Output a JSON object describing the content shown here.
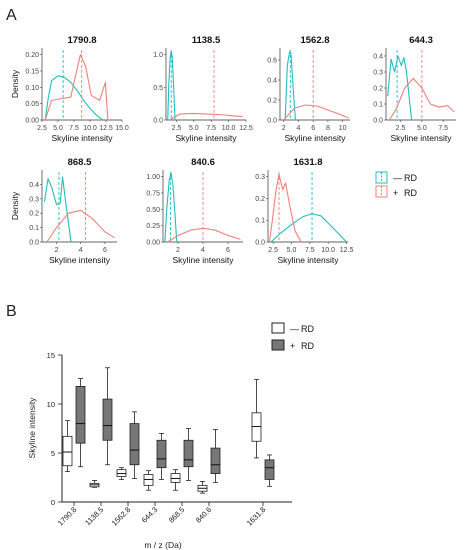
{
  "panels": {
    "a_label": "A",
    "b_label": "B"
  },
  "colors": {
    "minus": "#1fbfbf",
    "plus": "#f07f78",
    "box_plus": "#777777",
    "box_minus": "#ffffff"
  },
  "legend_a": {
    "minus": {
      "sign": "—",
      "text": "RD"
    },
    "plus": {
      "sign": "+",
      "text": "RD"
    }
  },
  "legend_b": {
    "minus": {
      "sign": "—",
      "text": "RD"
    },
    "plus": {
      "sign": "+",
      "text": "RD"
    }
  },
  "chart_data": [
    {
      "type": "line",
      "title": "1790.8",
      "xlabel": "Skyline intensity",
      "ylabel": "Density",
      "xlim": [
        2.5,
        15.0
      ],
      "ylim": [
        0,
        0.22
      ],
      "xticks": [
        "2.5",
        "5.0",
        "7.5",
        "10.0",
        "12.5",
        "15.0"
      ],
      "xtick_values": [
        2.5,
        5.0,
        7.5,
        10.0,
        12.5,
        15.0
      ],
      "yticks": [
        "0.00",
        "0.05",
        "0.10",
        "0.15",
        "0.20"
      ],
      "ytick_values": [
        0,
        0.05,
        0.1,
        0.15,
        0.2
      ],
      "series": [
        {
          "group": "minus",
          "mean": 5.8,
          "x": [
            3.0,
            3.5,
            4.0,
            5.0,
            6.0,
            7.0,
            8.0,
            9.0,
            10.0,
            11.0,
            12.0
          ],
          "y": [
            0.0,
            0.07,
            0.12,
            0.135,
            0.13,
            0.115,
            0.09,
            0.06,
            0.035,
            0.015,
            0.0
          ]
        },
        {
          "group": "plus",
          "mean": 8.7,
          "x": [
            3.0,
            4.0,
            5.5,
            7.0,
            7.8,
            8.5,
            9.3,
            10.2,
            11.5,
            12.4,
            12.8
          ],
          "y": [
            0.0,
            0.06,
            0.065,
            0.07,
            0.14,
            0.2,
            0.165,
            0.075,
            0.06,
            0.115,
            0.0
          ]
        }
      ]
    },
    {
      "type": "line",
      "title": "1138.5",
      "xlabel": "Skyline intensity",
      "ylabel": "",
      "xlim": [
        1.0,
        12.5
      ],
      "ylim": [
        0,
        1.1
      ],
      "xticks": [
        "2.5",
        "5.0",
        "7.5",
        "10.0",
        "12.5"
      ],
      "xtick_values": [
        2.5,
        5.0,
        7.5,
        10.0,
        12.5
      ],
      "yticks": [
        "0.0",
        "0.5",
        "1.0"
      ],
      "ytick_values": [
        0,
        0.5,
        1.0
      ],
      "series": [
        {
          "group": "minus",
          "mean": 1.75,
          "x": [
            1.25,
            1.4,
            1.6,
            1.75,
            1.9,
            2.1,
            2.3
          ],
          "y": [
            0.0,
            0.55,
            0.95,
            1.05,
            0.95,
            0.5,
            0.0
          ]
        },
        {
          "group": "plus",
          "mean": 7.9,
          "x": [
            1.5,
            3.0,
            5.0,
            7.0,
            9.0,
            11.0,
            12.0
          ],
          "y": [
            0.0,
            0.09,
            0.1,
            0.09,
            0.08,
            0.06,
            0.05
          ]
        }
      ]
    },
    {
      "type": "line",
      "title": "1562.8",
      "xlabel": "Skyline intensity",
      "ylabel": "",
      "xlim": [
        1.5,
        11.0
      ],
      "ylim": [
        0,
        0.72
      ],
      "xticks": [
        "2",
        "4",
        "6",
        "8",
        "10"
      ],
      "xtick_values": [
        2,
        4,
        6,
        8,
        10
      ],
      "yticks": [
        "0.0",
        "0.2",
        "0.4",
        "0.6"
      ],
      "ytick_values": [
        0,
        0.2,
        0.4,
        0.6
      ],
      "series": [
        {
          "group": "minus",
          "mean": 2.9,
          "x": [
            2.2,
            2.5,
            2.8,
            3.0,
            3.3,
            3.6
          ],
          "y": [
            0.0,
            0.55,
            0.68,
            0.66,
            0.3,
            0.0
          ]
        },
        {
          "group": "plus",
          "mean": 6.0,
          "x": [
            2.0,
            3.5,
            5.0,
            6.5,
            8.0,
            9.5,
            10.8
          ],
          "y": [
            0.0,
            0.12,
            0.15,
            0.14,
            0.1,
            0.06,
            0.02
          ]
        }
      ]
    },
    {
      "type": "line",
      "title": "644.3",
      "xlabel": "Skyline intensity",
      "ylabel": "",
      "xlim": [
        0.8,
        9.0
      ],
      "ylim": [
        0,
        0.45
      ],
      "xticks": [
        "2.5",
        "5.0",
        "7.5"
      ],
      "xtick_values": [
        2.5,
        5.0,
        7.5
      ],
      "yticks": [
        "0.0",
        "0.1",
        "0.2",
        "0.3",
        "0.4"
      ],
      "ytick_values": [
        0,
        0.1,
        0.2,
        0.3,
        0.4
      ],
      "series": [
        {
          "group": "minus",
          "mean": 2.1,
          "x": [
            1.0,
            1.4,
            1.8,
            2.2,
            2.6,
            2.9,
            3.2,
            3.8
          ],
          "y": [
            0.15,
            0.38,
            0.3,
            0.4,
            0.34,
            0.39,
            0.3,
            0.0
          ]
        },
        {
          "group": "plus",
          "mean": 5.0,
          "x": [
            1.2,
            2.0,
            3.0,
            4.0,
            5.0,
            6.0,
            7.0,
            8.0,
            8.8
          ],
          "y": [
            0.0,
            0.07,
            0.2,
            0.26,
            0.2,
            0.1,
            0.08,
            0.09,
            0.05
          ]
        }
      ]
    },
    {
      "type": "line",
      "title": "868.5",
      "xlabel": "Skyline intensity",
      "ylabel": "Density",
      "xlim": [
        0.8,
        7.0
      ],
      "ylim": [
        0,
        0.5
      ],
      "xticks": [
        "2",
        "4",
        "6"
      ],
      "xtick_values": [
        2,
        4,
        6
      ],
      "yticks": [
        "0.0",
        "0.1",
        "0.2",
        "0.3",
        "0.4"
      ],
      "ytick_values": [
        0,
        0.1,
        0.2,
        0.3,
        0.4
      ],
      "series": [
        {
          "group": "minus",
          "mean": 2.2,
          "x": [
            1.0,
            1.3,
            1.6,
            2.0,
            2.3,
            2.5,
            2.8,
            3.2
          ],
          "y": [
            0.28,
            0.44,
            0.38,
            0.26,
            0.27,
            0.45,
            0.25,
            0.0
          ]
        },
        {
          "group": "plus",
          "mean": 4.4,
          "x": [
            1.2,
            2.0,
            3.0,
            4.0,
            5.0,
            6.0,
            6.8
          ],
          "y": [
            0.0,
            0.1,
            0.2,
            0.22,
            0.16,
            0.07,
            0.03
          ]
        }
      ]
    },
    {
      "type": "line",
      "title": "840.6",
      "xlabel": "Skyline intensity",
      "ylabel": "",
      "xlim": [
        0.8,
        7.2
      ],
      "ylim": [
        0,
        1.1
      ],
      "xticks": [
        "2",
        "4",
        "6"
      ],
      "xtick_values": [
        2,
        4,
        6
      ],
      "yticks": [
        "0.00",
        "0.25",
        "0.50",
        "0.75",
        "1.00"
      ],
      "ytick_values": [
        0,
        0.25,
        0.5,
        0.75,
        1.0
      ],
      "series": [
        {
          "group": "minus",
          "mean": 1.4,
          "x": [
            0.95,
            1.1,
            1.3,
            1.45,
            1.6,
            1.75,
            1.9
          ],
          "y": [
            0.0,
            0.5,
            0.95,
            1.05,
            0.85,
            0.45,
            0.0
          ]
        },
        {
          "group": "plus",
          "mean": 4.0,
          "x": [
            1.2,
            2.0,
            3.0,
            4.0,
            5.0,
            6.0,
            7.0
          ],
          "y": [
            0.0,
            0.1,
            0.18,
            0.21,
            0.18,
            0.1,
            0.04
          ]
        }
      ]
    },
    {
      "type": "line",
      "title": "1631.8",
      "xlabel": "Skyline intensity",
      "ylabel": "",
      "xlim": [
        1.8,
        12.7
      ],
      "ylim": [
        0,
        0.33
      ],
      "xticks": [
        "2.5",
        "5.0",
        "7.5",
        "10.0",
        "12.5"
      ],
      "xtick_values": [
        2.5,
        5.0,
        7.5,
        10.0,
        12.5
      ],
      "yticks": [
        "0.0",
        "0.1",
        "0.2",
        "0.3"
      ],
      "ytick_values": [
        0,
        0.1,
        0.2,
        0.3
      ],
      "series": [
        {
          "group": "minus",
          "mean": 7.8,
          "x": [
            2.2,
            3.5,
            5.0,
            6.5,
            7.8,
            9.0,
            10.5,
            12.5
          ],
          "y": [
            0.0,
            0.04,
            0.08,
            0.115,
            0.13,
            0.12,
            0.07,
            0.0
          ]
        },
        {
          "group": "plus",
          "mean": 3.3,
          "x": [
            2.0,
            2.4,
            2.9,
            3.3,
            3.8,
            4.2,
            4.8,
            5.5,
            6.3
          ],
          "y": [
            0.0,
            0.1,
            0.24,
            0.31,
            0.24,
            0.27,
            0.16,
            0.05,
            0.0
          ]
        }
      ]
    },
    {
      "type": "box",
      "ylabel": "Skyline intensity",
      "xlabel": "m / z (Da)",
      "ylim": [
        0,
        15
      ],
      "yticks": [
        "0",
        "5",
        "10",
        "15"
      ],
      "ytick_values": [
        0,
        5,
        10,
        15
      ],
      "categories": [
        "1790.8",
        "1138.5",
        "1562.8",
        "644.3",
        "868.5",
        "840.6",
        "1631.8"
      ],
      "category_slots": [
        0,
        1,
        2,
        3,
        4,
        5,
        7
      ],
      "series": [
        {
          "group": "minus",
          "boxes": [
            {
              "min": 3.1,
              "q1": 3.7,
              "median": 5.1,
              "q3": 6.7,
              "max": 8.3
            },
            {
              "min": 1.5,
              "q1": 1.55,
              "median": 1.75,
              "q3": 1.9,
              "max": 2.2
            },
            {
              "min": 2.3,
              "q1": 2.6,
              "median": 2.9,
              "q3": 3.3,
              "max": 3.5
            },
            {
              "min": 1.2,
              "q1": 1.7,
              "median": 2.3,
              "q3": 2.8,
              "max": 3.2
            },
            {
              "min": 1.2,
              "q1": 2.0,
              "median": 2.4,
              "q3": 2.9,
              "max": 3.3
            },
            {
              "min": 0.9,
              "q1": 1.1,
              "median": 1.4,
              "q3": 1.7,
              "max": 2.1
            },
            {
              "min": 4.5,
              "q1": 6.2,
              "median": 7.7,
              "q3": 9.1,
              "max": 12.5
            }
          ]
        },
        {
          "group": "plus",
          "boxes": [
            {
              "min": 3.6,
              "q1": 6.0,
              "median": 8.0,
              "q3": 11.8,
              "max": 12.6
            },
            {
              "min": 3.8,
              "q1": 6.3,
              "median": 7.8,
              "q3": 10.5,
              "max": 13.7
            },
            {
              "min": 2.4,
              "q1": 3.8,
              "median": 5.3,
              "q3": 8.0,
              "max": 9.2
            },
            {
              "min": 2.3,
              "q1": 3.5,
              "median": 4.4,
              "q3": 6.3,
              "max": 7.0
            },
            {
              "min": 2.2,
              "q1": 3.6,
              "median": 4.3,
              "q3": 6.3,
              "max": 7.5
            },
            {
              "min": 2.0,
              "q1": 2.9,
              "median": 3.8,
              "q3": 5.5,
              "max": 7.4
            },
            {
              "min": 1.6,
              "q1": 2.3,
              "median": 3.5,
              "q3": 4.3,
              "max": 4.8
            }
          ]
        }
      ]
    }
  ]
}
